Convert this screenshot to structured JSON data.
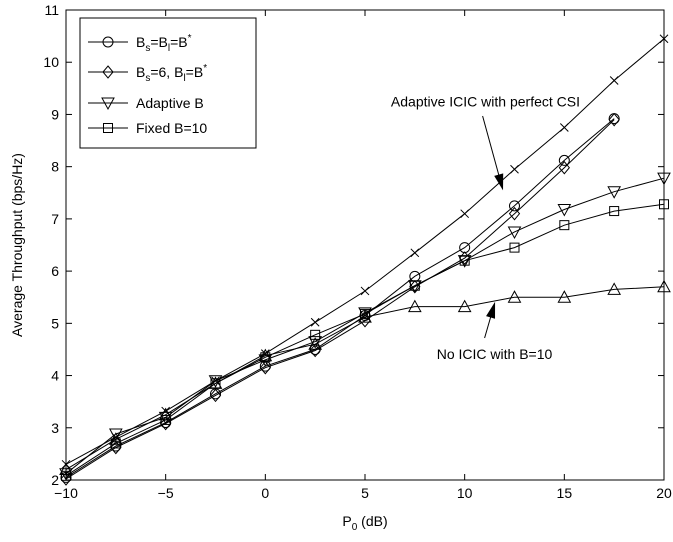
{
  "chart_data": {
    "type": "line",
    "title": "",
    "xlabel_main": "P",
    "xlabel_sub": "0",
    "xlabel_unit": " (dB)",
    "ylabel": "Average Throughput (bps/Hz)",
    "xlim": [
      -10,
      20
    ],
    "ylim": [
      2,
      11
    ],
    "xticks": [
      -10,
      -5,
      0,
      5,
      10,
      15,
      20
    ],
    "xtick_labels": [
      "−10",
      "−5",
      "0",
      "5",
      "10",
      "15",
      "20"
    ],
    "yticks": [
      2,
      3,
      4,
      5,
      6,
      7,
      8,
      9,
      10,
      11
    ],
    "ytick_labels": [
      "2",
      "3",
      "4",
      "5",
      "6",
      "7",
      "8",
      "9",
      "10",
      "11"
    ],
    "grid": false,
    "legend_position": "top-left",
    "series": [
      {
        "key": "bs_bl_bstar",
        "marker": "circle",
        "x": [
          -10,
          -7.5,
          -5,
          -2.5,
          0,
          2.5,
          5,
          7.5,
          10,
          12.5,
          15,
          17.5
        ],
        "y": [
          2.05,
          2.65,
          3.1,
          3.65,
          4.18,
          4.5,
          5.15,
          5.9,
          6.45,
          7.25,
          8.12,
          8.92
        ]
      },
      {
        "key": "bs6_bl_bstar",
        "marker": "diamond",
        "x": [
          -10,
          -7.5,
          -5,
          -2.5,
          0,
          2.5,
          5,
          7.5,
          10,
          12.5,
          15,
          17.5
        ],
        "y": [
          2.02,
          2.62,
          3.08,
          3.62,
          4.15,
          4.48,
          5.05,
          5.7,
          6.25,
          7.1,
          7.98,
          8.9
        ]
      },
      {
        "key": "adaptive_b",
        "marker": "triangle-down",
        "x": [
          -10,
          -7.5,
          -5,
          -2.5,
          0,
          2.5,
          5,
          7.5,
          10,
          12.5,
          15,
          17.5,
          20
        ],
        "y": [
          2.12,
          2.88,
          3.2,
          3.9,
          4.3,
          4.65,
          5.2,
          5.72,
          6.2,
          6.75,
          7.18,
          7.52,
          7.78
        ]
      },
      {
        "key": "fixed_b10",
        "marker": "square",
        "x": [
          -10,
          -7.5,
          -5,
          -2.5,
          0,
          2.5,
          5,
          7.5,
          10,
          12.5,
          15,
          17.5,
          20
        ],
        "y": [
          2.08,
          2.7,
          3.15,
          3.85,
          4.35,
          4.78,
          5.18,
          5.72,
          6.2,
          6.45,
          6.88,
          7.15,
          7.28
        ]
      },
      {
        "key": "adaptive_icic_perfect_csi",
        "marker": "x",
        "x": [
          -10,
          -7.5,
          -5,
          -2.5,
          0,
          2.5,
          5,
          7.5,
          10,
          12.5,
          15,
          17.5,
          20
        ],
        "y": [
          2.3,
          2.82,
          3.32,
          3.9,
          4.42,
          5.02,
          5.62,
          6.35,
          7.1,
          7.95,
          8.75,
          9.65,
          10.45
        ]
      },
      {
        "key": "no_icic_b10",
        "marker": "triangle-up",
        "x": [
          -10,
          -7.5,
          -5,
          -2.5,
          0,
          2.5,
          5,
          7.5,
          10,
          12.5,
          15,
          17.5,
          20
        ],
        "y": [
          2.2,
          2.78,
          3.25,
          3.85,
          4.38,
          4.6,
          5.12,
          5.32,
          5.32,
          5.5,
          5.5,
          5.65,
          5.7
        ]
      }
    ],
    "legend": [
      {
        "series": "bs_bl_bstar",
        "parts": [
          "B",
          "s",
          "=B",
          "l",
          "=B",
          "*"
        ]
      },
      {
        "series": "bs6_bl_bstar",
        "parts": [
          "B",
          "s",
          "=6, B",
          "l",
          "=B",
          "*"
        ]
      },
      {
        "series": "adaptive_b",
        "text": "Adaptive B"
      },
      {
        "series": "fixed_b10",
        "text": "Fixed B=10"
      }
    ],
    "annotations": [
      {
        "series": "adaptive_icic_perfect_csi",
        "text": "Adaptive ICIC with perfect CSI",
        "text_x": 6.3,
        "text_y": 9.15,
        "arrow_from": [
          10.9,
          8.97
        ],
        "arrow_to": [
          11.9,
          7.58
        ]
      },
      {
        "series": "no_icic_b10",
        "text": "No ICIC with B=10",
        "text_x": 8.6,
        "text_y": 4.32,
        "arrow_from": [
          11.0,
          4.72
        ],
        "arrow_to": [
          11.5,
          5.38
        ]
      }
    ]
  }
}
